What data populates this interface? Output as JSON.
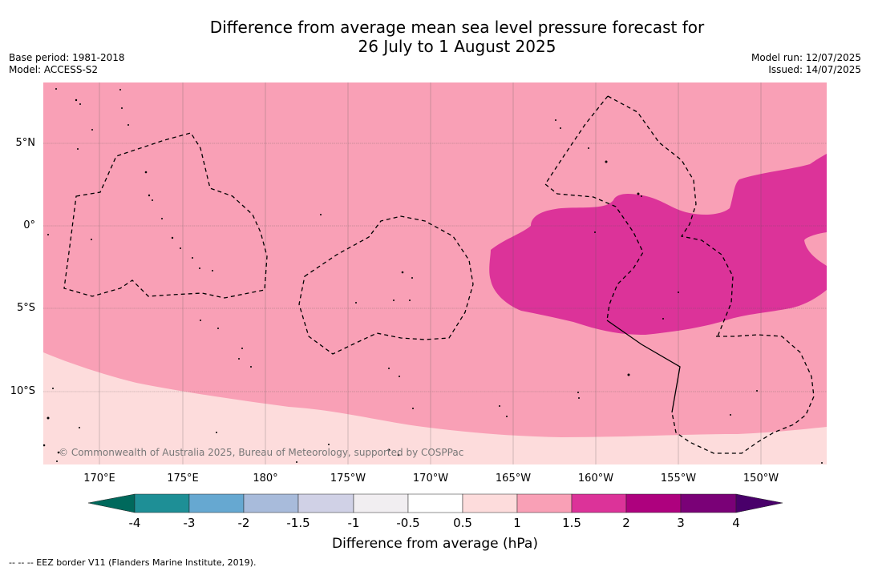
{
  "title": {
    "line1": "Difference from average mean sea level pressure forecast for",
    "line2": "26 July to 1 August 2025"
  },
  "meta": {
    "base_period": "Base period: 1981-2018",
    "model": "Model: ACCESS-S2",
    "model_run": "Model run: 12/07/2025",
    "issued": "Issued: 14/07/2025"
  },
  "map": {
    "lat_labels": [
      "5°N",
      "0°",
      "5°S",
      "10°S"
    ],
    "lon_labels": [
      "170°E",
      "175°E",
      "180°",
      "175°W",
      "170°W",
      "165°W",
      "160°W",
      "155°W",
      "150°W"
    ],
    "copyright": "© Commonwealth of Australia 2025, Bureau of Meteorology, supported by COSPPac",
    "colors": {
      "range_0_5_to_1": "#fddcdc",
      "range_1_to_1_5": "#f9a0b6",
      "range_1_5_to_2": "#dc3399"
    }
  },
  "colorbar": {
    "ticks": [
      "-4",
      "-3",
      "-2",
      "-1.5",
      "-1",
      "-0.5",
      "0.5",
      "1",
      "1.5",
      "2",
      "3",
      "4"
    ],
    "colors": [
      "#1e8f96",
      "#66a8d1",
      "#a8bbdb",
      "#d0d1e6",
      "#f1eef1",
      "#ffffff",
      "#fddcdc",
      "#f9a0b6",
      "#dc3399",
      "#ae017e",
      "#7a0177"
    ],
    "under_color": "#00695c",
    "over_color": "#49006a",
    "label": "Difference from average (hPa)"
  },
  "legend": {
    "eez": "--  --  -- EEZ border V11 (Flanders Marine Institute, 2019)."
  }
}
